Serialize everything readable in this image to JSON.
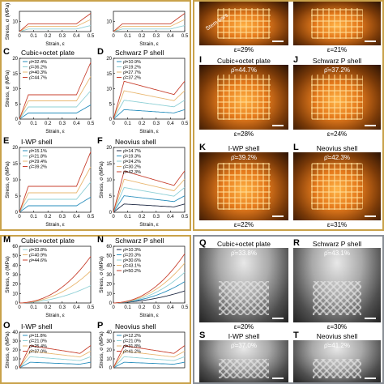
{
  "figure": {
    "top_left": {
      "panels": [
        {
          "id": "p_a",
          "letter": "",
          "title": "",
          "ylabel": "Stress, σ (MPa)",
          "xlabel": "Strain, ε",
          "yticks": [
            "10"
          ],
          "xticks": [
            "0",
            "0.1",
            "0.2",
            "0.3",
            "0.4",
            "0.5"
          ],
          "legend": []
        },
        {
          "id": "p_b",
          "letter": "",
          "title": "",
          "ylabel": "",
          "xlabel": "Strain, ε",
          "yticks": [
            "10"
          ],
          "xticks": [
            "0",
            "0.1",
            "0.2",
            "0.3",
            "0.4",
            "0.5"
          ],
          "legend": []
        },
        {
          "id": "p_c",
          "letter": "C",
          "title": "Cubic+octet plate",
          "ylabel": "Stress, σ (MPa)",
          "xlabel": "Strain, ε",
          "yticks": [
            "0",
            "5",
            "10",
            "15",
            "20"
          ],
          "xticks": [
            "0",
            "0.1",
            "0.2",
            "0.3",
            "0.4",
            "0.5"
          ],
          "legend": [
            "ρ̄=32.4%",
            "ρ̄=36.2%",
            "ρ̄=40.3%",
            "ρ̄=44.7%"
          ]
        },
        {
          "id": "p_d",
          "letter": "D",
          "title": "Schwarz P shell",
          "ylabel": "",
          "xlabel": "Strain, ε",
          "yticks": [
            "0",
            "5",
            "10",
            "15",
            "20"
          ],
          "xticks": [
            "0",
            "0.1",
            "0.2",
            "0.3",
            "0.4",
            "0.5"
          ],
          "legend": [
            "ρ̄=10.9%",
            "ρ̄=19.2%",
            "ρ̄=27.7%",
            "ρ̄=37.2%"
          ]
        },
        {
          "id": "p_e",
          "letter": "E",
          "title": "I-WP shell",
          "ylabel": "Stress, σ (MPa)",
          "xlabel": "Strain, ε",
          "yticks": [
            "0",
            "5",
            "10",
            "15",
            "20"
          ],
          "xticks": [
            "0",
            "0.1",
            "0.2",
            "0.3",
            "0.4",
            "0.5"
          ],
          "legend": [
            "ρ̄=15.1%",
            "ρ̄=21.8%",
            "ρ̄=29.4%",
            "ρ̄=39.2%"
          ]
        },
        {
          "id": "p_f",
          "letter": "F",
          "title": "Neovius shell",
          "ylabel": "Stress, σ (MPa)",
          "xlabel": "Strain, ε",
          "yticks": [
            "0",
            "5",
            "10",
            "15",
            "20"
          ],
          "xticks": [
            "0",
            "0.1",
            "0.2",
            "0.3",
            "0.4",
            "0.5"
          ],
          "legend": [
            "ρ̄=14.7%",
            "ρ̄=19.3%",
            "ρ̄=24.2%",
            "ρ̄=30.2%",
            "ρ̄=42.3%"
          ]
        }
      ]
    },
    "top_right": {
      "photos": [
        {
          "id": "ph_h",
          "letter": "",
          "title": "",
          "overlay": "",
          "caption": "ε=29%",
          "note": "Stem bars"
        },
        {
          "id": "ph_i0",
          "letter": "",
          "title": "",
          "overlay": "",
          "caption": "ε=21%",
          "note": ""
        },
        {
          "id": "ph_i",
          "letter": "I",
          "title": "Cubic+octet plate",
          "overlay": "ρ̄=44.7%",
          "caption": "ε=28%",
          "note": ""
        },
        {
          "id": "ph_j",
          "letter": "J",
          "title": "Schwarz P shell",
          "overlay": "ρ̄=37.2%",
          "caption": "ε=24%",
          "note": ""
        },
        {
          "id": "ph_k",
          "letter": "K",
          "title": "I-WP shell",
          "overlay": "ρ̄=39.2%",
          "caption": "ε=22%",
          "note": ""
        },
        {
          "id": "ph_l",
          "letter": "L",
          "title": "Neovius shell",
          "overlay": "ρ̄=42.3%",
          "caption": "ε=31%",
          "note": ""
        }
      ]
    },
    "bottom_left": {
      "panels": [
        {
          "id": "p_m",
          "letter": "M",
          "title": "Cubic+octet plate",
          "ylabel": "Stress, σ (MPa)",
          "xlabel": "Strain, ε",
          "yticks": [
            "0",
            "10",
            "20",
            "30",
            "40",
            "50",
            "60"
          ],
          "xticks": [
            "0",
            "0.1",
            "0.2",
            "0.3",
            "0.4",
            "0.5"
          ],
          "legend": [
            "ρ̄=33.8%",
            "ρ̄=40.9%",
            "ρ̄=44.6%"
          ]
        },
        {
          "id": "p_n",
          "letter": "N",
          "title": "Schwarz P shell",
          "ylabel": "Stress, σ (MPa)",
          "xlabel": "Strain, ε",
          "yticks": [
            "0",
            "10",
            "20",
            "30",
            "40",
            "50",
            "60"
          ],
          "xticks": [
            "0",
            "0.1",
            "0.2",
            "0.3",
            "0.4",
            "0.5"
          ],
          "legend": [
            "ρ̄=10.3%",
            "ρ̄=20.3%",
            "ρ̄=30.6%",
            "ρ̄=43.1%",
            "ρ̄=50.2%"
          ]
        },
        {
          "id": "p_o",
          "letter": "O",
          "title": "I-WP shell",
          "ylabel": "Stress, σ (MPa)",
          "xlabel": "",
          "yticks": [
            "0",
            "10",
            "20",
            "30",
            "40"
          ],
          "xticks": [],
          "legend": [
            "ρ̄=11.8%",
            "ρ̄=21.0%",
            "ρ̄=25.4%",
            "ρ̄=37.0%"
          ]
        },
        {
          "id": "p_p",
          "letter": "P",
          "title": "Neovius shell",
          "ylabel": "Stress, σ (MPa)",
          "xlabel": "",
          "yticks": [
            "0",
            "10",
            "20",
            "30",
            "40"
          ],
          "xticks": [],
          "legend": [
            "ρ̄=12.2%",
            "ρ̄=21.0%",
            "ρ̄=31.8%",
            "ρ̄=41.2%"
          ]
        }
      ]
    },
    "bottom_right": {
      "photos": [
        {
          "id": "ph_q",
          "letter": "Q",
          "title": "Cubic+octet plate",
          "overlay": "ρ̄=33.8%",
          "caption": "ε=20%"
        },
        {
          "id": "ph_r",
          "letter": "R",
          "title": "Schwarz P shell",
          "overlay": "ρ̄=43.1%",
          "caption": "ε=30%"
        },
        {
          "id": "ph_s",
          "letter": "S",
          "title": "I-WP shell",
          "overlay": "ρ̄=37.0%",
          "caption": ""
        },
        {
          "id": "ph_t",
          "letter": "T",
          "title": "Neovius shell",
          "overlay": "ρ̄=41.2%",
          "caption": ""
        }
      ]
    },
    "colors": {
      "frame_gold": "#c9a24a",
      "frame_gray": "#8a8f96",
      "series": [
        "#1f2a44",
        "#2a8fbd",
        "#8fd0d6",
        "#e9b872",
        "#c8412f"
      ]
    }
  }
}
